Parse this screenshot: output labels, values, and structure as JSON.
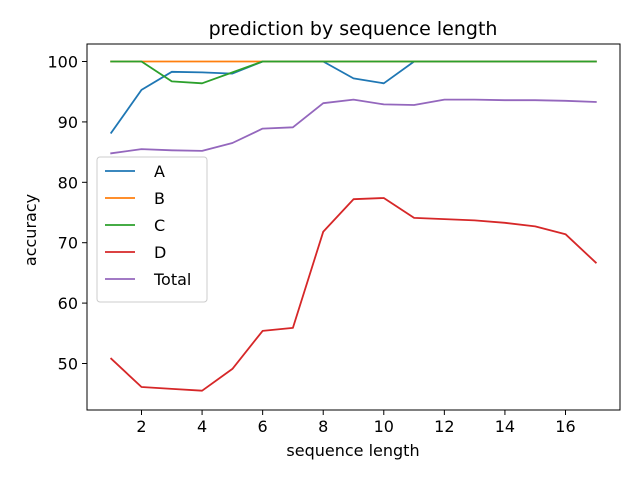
{
  "chart_data": {
    "type": "line",
    "title": "prediction by sequence length",
    "xlabel": "sequence length",
    "ylabel": "accuracy",
    "x": [
      1,
      2,
      3,
      4,
      5,
      6,
      7,
      8,
      9,
      10,
      11,
      12,
      13,
      14,
      15,
      16,
      17
    ],
    "xlim": [
      0.2,
      17.8
    ],
    "ylim": [
      42.3,
      102.9
    ],
    "xticks": [
      2,
      4,
      6,
      8,
      10,
      12,
      14,
      16
    ],
    "yticks": [
      50,
      60,
      70,
      80,
      90,
      100
    ],
    "grid": false,
    "legend_position": "center-left",
    "series": [
      {
        "name": "A",
        "color": "#1f77b4",
        "values": [
          88.2,
          95.3,
          98.3,
          98.2,
          98.0,
          100,
          100,
          100,
          97.2,
          96.4,
          100,
          100,
          100,
          100,
          100,
          100,
          100
        ]
      },
      {
        "name": "B",
        "color": "#ff7f0e",
        "values": [
          100,
          100,
          100,
          100,
          100,
          100,
          100,
          100,
          100,
          100,
          100,
          100,
          100,
          100,
          100,
          100,
          100
        ]
      },
      {
        "name": "C",
        "color": "#2ca02c",
        "values": [
          100,
          100,
          96.7,
          96.4,
          98.2,
          100,
          100,
          100,
          100,
          100,
          100,
          100,
          100,
          100,
          100,
          100,
          100
        ]
      },
      {
        "name": "D",
        "color": "#d62728",
        "values": [
          50.8,
          46.1,
          45.8,
          45.5,
          49.1,
          55.4,
          55.9,
          71.8,
          77.2,
          77.4,
          74.1,
          73.9,
          73.7,
          73.3,
          72.7,
          71.4,
          66.7
        ]
      },
      {
        "name": "Total",
        "color": "#9467bd",
        "values": [
          84.8,
          85.5,
          85.3,
          85.2,
          86.5,
          88.9,
          89.1,
          93.1,
          93.7,
          92.9,
          92.8,
          93.7,
          93.7,
          93.6,
          93.6,
          93.5,
          93.3
        ]
      }
    ]
  }
}
